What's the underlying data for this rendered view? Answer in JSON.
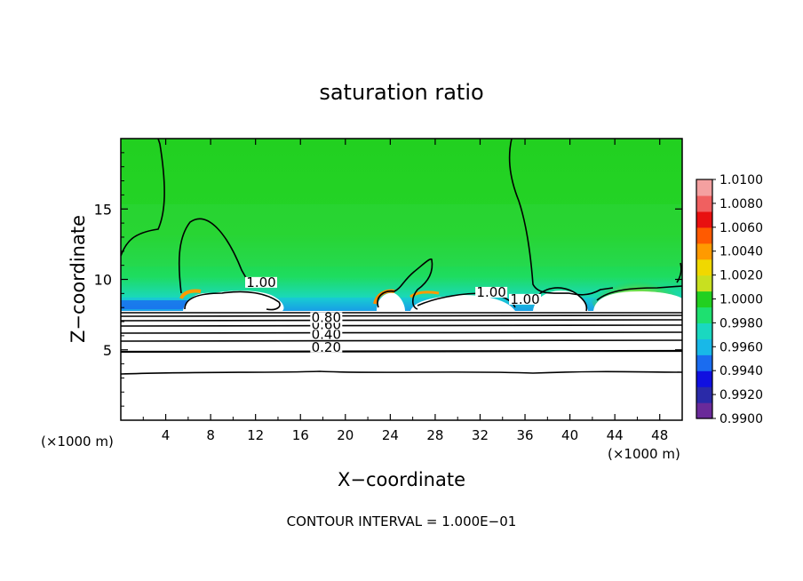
{
  "chart_data": {
    "type": "heatmap",
    "title": "saturation ratio",
    "xlabel": "X−coordinate",
    "ylabel": "Z−coordinate",
    "x_unit_left": "(×1000 m)",
    "x_unit_right": "(×1000 m)",
    "xlim": [
      0,
      50
    ],
    "ylim": [
      0,
      20
    ],
    "xticks": [
      4,
      8,
      12,
      16,
      20,
      24,
      28,
      32,
      36,
      40,
      44,
      48
    ],
    "xtick_labels": [
      "4",
      "8",
      "12",
      "16",
      "20",
      "24",
      "28",
      "32",
      "36",
      "40",
      "44",
      "48"
    ],
    "yticks": [
      5,
      10,
      15
    ],
    "ytick_labels": [
      "5",
      "10",
      "15"
    ],
    "colorbar": {
      "range": [
        0.99,
        1.01
      ],
      "tick_values": [
        0.99,
        0.992,
        0.994,
        0.996,
        0.998,
        1.0,
        1.002,
        1.004,
        1.006,
        1.008,
        1.01
      ],
      "tick_labels": [
        "0.9900",
        "0.9920",
        "0.9940",
        "0.9960",
        "0.9980",
        "1.0000",
        "1.0020",
        "1.0040",
        "1.0060",
        "1.0080",
        "1.0100"
      ],
      "colors": [
        "#6a2a9a",
        "#2a2aa8",
        "#1010e0",
        "#1a6cf0",
        "#18b8e8",
        "#1ad8c0",
        "#1ee070",
        "#22d020",
        "#c8e020",
        "#f0d800",
        "#ff9a00",
        "#ff5a00",
        "#e81010",
        "#f06060",
        "#f4a0a0"
      ]
    },
    "contour_labels": [
      {
        "text": "0.20",
        "x": 18.3,
        "y": 5.0
      },
      {
        "text": "0.40",
        "x": 18.3,
        "y": 5.9
      },
      {
        "text": "0.60",
        "x": 18.3,
        "y": 6.6
      },
      {
        "text": "0.80",
        "x": 18.3,
        "y": 7.1
      },
      {
        "text": "1.00",
        "x": 12.5,
        "y": 9.6
      },
      {
        "text": "1.00",
        "x": 33.0,
        "y": 8.9
      },
      {
        "text": "1.00",
        "x": 36.0,
        "y": 8.4
      }
    ],
    "footer": "CONTOUR INTERVAL = 1.000E−01"
  }
}
